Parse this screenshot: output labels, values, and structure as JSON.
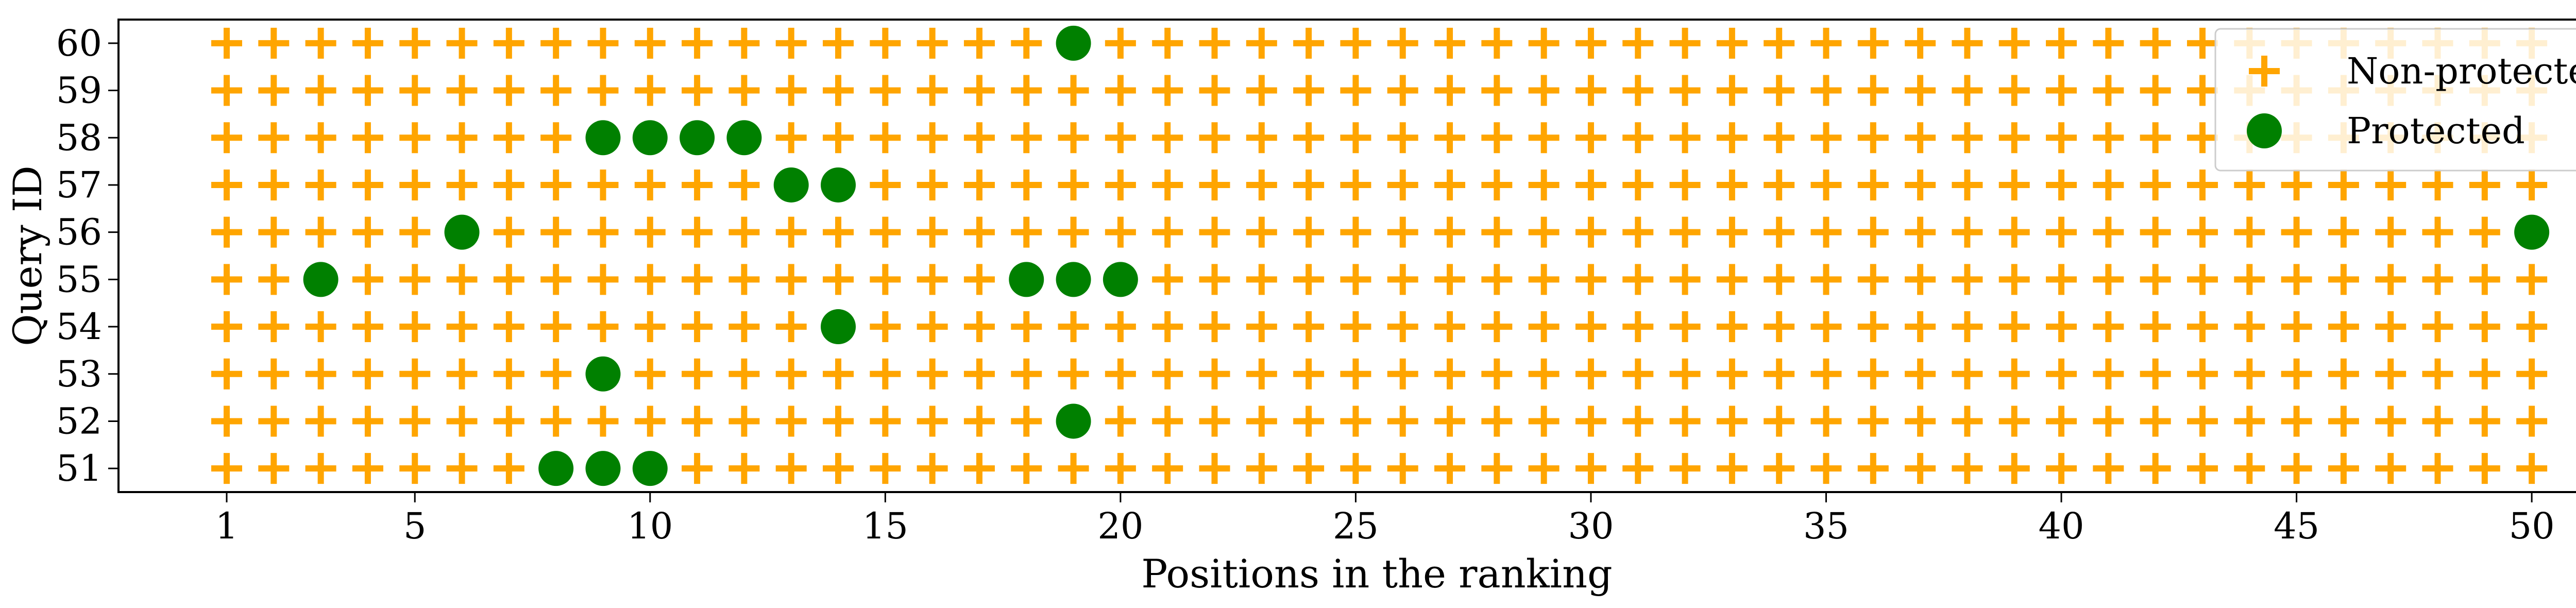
{
  "chart_data": {
    "type": "scatter",
    "xlabel": "Positions in the ranking",
    "ylabel": "Query ID",
    "xlim": [
      -1.3,
      52.2
    ],
    "ylim": [
      50.5,
      60.5
    ],
    "x_ticks": [
      1,
      5,
      10,
      15,
      20,
      25,
      30,
      35,
      40,
      45,
      50
    ],
    "y_ticks": [
      51,
      52,
      53,
      54,
      55,
      56,
      57,
      58,
      59,
      60
    ],
    "grid": false,
    "legend_position": "top-right",
    "positions_per_query": 50,
    "series": [
      {
        "name": "Non-protected",
        "marker": "plus",
        "color": "#ffa500",
        "points_rule": "all positions not listed under Protected"
      },
      {
        "name": "Protected",
        "marker": "circle",
        "color": "#008000",
        "points": [
          {
            "query": 60,
            "positions": [
              19
            ]
          },
          {
            "query": 59,
            "positions": []
          },
          {
            "query": 58,
            "positions": [
              9,
              10,
              11,
              12
            ]
          },
          {
            "query": 57,
            "positions": [
              13,
              14
            ]
          },
          {
            "query": 56,
            "positions": [
              6,
              50
            ]
          },
          {
            "query": 55,
            "positions": [
              3,
              18,
              19,
              20
            ]
          },
          {
            "query": 54,
            "positions": [
              14
            ]
          },
          {
            "query": 53,
            "positions": [
              9
            ]
          },
          {
            "query": 52,
            "positions": [
              19
            ]
          },
          {
            "query": 51,
            "positions": [
              8,
              9,
              10
            ]
          }
        ]
      }
    ]
  }
}
